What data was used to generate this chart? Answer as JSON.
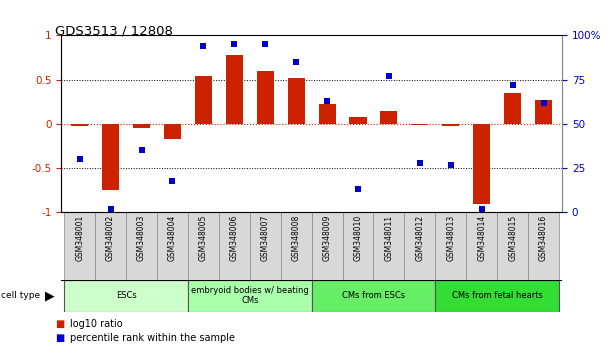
{
  "title": "GDS3513 / 12808",
  "samples": [
    "GSM348001",
    "GSM348002",
    "GSM348003",
    "GSM348004",
    "GSM348005",
    "GSM348006",
    "GSM348007",
    "GSM348008",
    "GSM348009",
    "GSM348010",
    "GSM348011",
    "GSM348012",
    "GSM348013",
    "GSM348014",
    "GSM348015",
    "GSM348016"
  ],
  "log10_ratio": [
    -0.02,
    -0.75,
    -0.05,
    -0.17,
    0.54,
    0.78,
    0.6,
    0.52,
    0.22,
    0.08,
    0.15,
    -0.01,
    -0.02,
    -0.9,
    0.35,
    0.27
  ],
  "percentile_rank": [
    30,
    2,
    35,
    18,
    94,
    95,
    95,
    85,
    63,
    13,
    77,
    28,
    27,
    2,
    72,
    62
  ],
  "cell_types": [
    {
      "label": "ESCs",
      "start": 0,
      "end": 3,
      "color": "#ccffcc"
    },
    {
      "label": "embryoid bodies w/ beating\nCMs",
      "start": 4,
      "end": 7,
      "color": "#aaffaa"
    },
    {
      "label": "CMs from ESCs",
      "start": 8,
      "end": 11,
      "color": "#66ee66"
    },
    {
      "label": "CMs from fetal hearts",
      "start": 12,
      "end": 15,
      "color": "#33dd33"
    }
  ],
  "bar_color": "#cc2200",
  "dot_color": "#0000cc",
  "ylim_left": [
    -1.0,
    1.0
  ],
  "ylim_right": [
    0,
    100
  ],
  "yticks_left": [
    -1.0,
    -0.5,
    0.0,
    0.5,
    1.0
  ],
  "ytick_labels_left": [
    "-1",
    "-0.5",
    "0",
    "0.5",
    "1"
  ],
  "yticks_right": [
    0,
    25,
    50,
    75,
    100
  ],
  "ytick_labels_right": [
    "0",
    "25",
    "50",
    "75",
    "100%"
  ],
  "hlines_dotted": [
    -0.5,
    0.5
  ],
  "hline_red": 0.0,
  "legend_items": [
    {
      "color": "#cc2200",
      "label": "log10 ratio"
    },
    {
      "color": "#0000cc",
      "label": "percentile rank within the sample"
    }
  ],
  "sample_box_color": "#d8d8d8",
  "sample_box_edge": "#888888",
  "cell_type_edge": "#555555"
}
